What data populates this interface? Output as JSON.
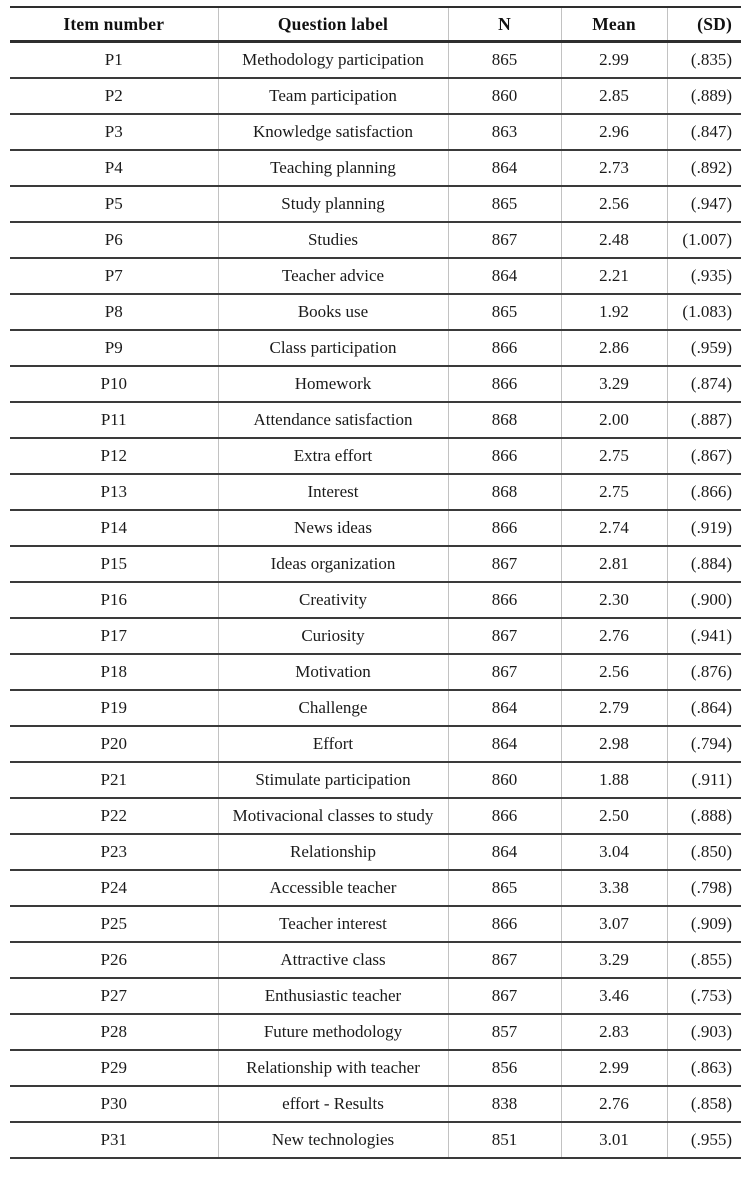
{
  "table": {
    "columns": {
      "item": "Item number",
      "label": "Question label",
      "n": "N",
      "mean": "Mean",
      "sd": "(SD)"
    },
    "rows": [
      {
        "item": "P1",
        "label": "Methodology participation",
        "n": "865",
        "mean": "2.99",
        "sd": "(.835)"
      },
      {
        "item": "P2",
        "label": "Team participation",
        "n": "860",
        "mean": "2.85",
        "sd": "(.889)"
      },
      {
        "item": "P3",
        "label": "Knowledge satisfaction",
        "n": "863",
        "mean": "2.96",
        "sd": "(.847)"
      },
      {
        "item": "P4",
        "label": "Teaching planning",
        "n": "864",
        "mean": "2.73",
        "sd": "(.892)"
      },
      {
        "item": "P5",
        "label": "Study planning",
        "n": "865",
        "mean": "2.56",
        "sd": "(.947)"
      },
      {
        "item": "P6",
        "label": "Studies",
        "n": "867",
        "mean": "2.48",
        "sd": "(1.007)"
      },
      {
        "item": "P7",
        "label": "Teacher advice",
        "n": "864",
        "mean": "2.21",
        "sd": "(.935)"
      },
      {
        "item": "P8",
        "label": "Books use",
        "n": "865",
        "mean": "1.92",
        "sd": "(1.083)"
      },
      {
        "item": "P9",
        "label": "Class participation",
        "n": "866",
        "mean": "2.86",
        "sd": "(.959)"
      },
      {
        "item": "P10",
        "label": "Homework",
        "n": "866",
        "mean": "3.29",
        "sd": "(.874)"
      },
      {
        "item": "P11",
        "label": "Attendance satisfaction",
        "n": "868",
        "mean": "2.00",
        "sd": "(.887)"
      },
      {
        "item": "P12",
        "label": "Extra effort",
        "n": "866",
        "mean": "2.75",
        "sd": "(.867)"
      },
      {
        "item": "P13",
        "label": "Interest",
        "n": "868",
        "mean": "2.75",
        "sd": "(.866)"
      },
      {
        "item": "P14",
        "label": "News ideas",
        "n": "866",
        "mean": "2.74",
        "sd": "(.919)"
      },
      {
        "item": "P15",
        "label": "Ideas organization",
        "n": "867",
        "mean": "2.81",
        "sd": "(.884)"
      },
      {
        "item": "P16",
        "label": "Creativity",
        "n": "866",
        "mean": "2.30",
        "sd": "(.900)"
      },
      {
        "item": "P17",
        "label": "Curiosity",
        "n": "867",
        "mean": "2.76",
        "sd": "(.941)"
      },
      {
        "item": "P18",
        "label": "Motivation",
        "n": "867",
        "mean": "2.56",
        "sd": "(.876)"
      },
      {
        "item": "P19",
        "label": "Challenge",
        "n": "864",
        "mean": "2.79",
        "sd": "(.864)"
      },
      {
        "item": "P20",
        "label": "Effort",
        "n": "864",
        "mean": "2.98",
        "sd": "(.794)"
      },
      {
        "item": "P21",
        "label": "Stimulate participation",
        "n": "860",
        "mean": "1.88",
        "sd": "(.911)"
      },
      {
        "item": "P22",
        "label": "Motivacional classes to study",
        "n": "866",
        "mean": "2.50",
        "sd": "(.888)"
      },
      {
        "item": "P23",
        "label": "Relationship",
        "n": "864",
        "mean": "3.04",
        "sd": "(.850)"
      },
      {
        "item": "P24",
        "label": "Accessible teacher",
        "n": "865",
        "mean": "3.38",
        "sd": "(.798)"
      },
      {
        "item": "P25",
        "label": "Teacher interest",
        "n": "866",
        "mean": "3.07",
        "sd": "(.909)"
      },
      {
        "item": "P26",
        "label": "Attractive class",
        "n": "867",
        "mean": "3.29",
        "sd": "(.855)"
      },
      {
        "item": "P27",
        "label": "Enthusiastic teacher",
        "n": "867",
        "mean": "3.46",
        "sd": "(.753)"
      },
      {
        "item": "P28",
        "label": "Future methodology",
        "n": "857",
        "mean": "2.83",
        "sd": "(.903)"
      },
      {
        "item": "P29",
        "label": "Relationship with teacher",
        "n": "856",
        "mean": "2.99",
        "sd": "(.863)"
      },
      {
        "item": "P30",
        "label": "effort - Results",
        "n": "838",
        "mean": "2.76",
        "sd": "(.858)"
      },
      {
        "item": "P31",
        "label": "New technologies",
        "n": "851",
        "mean": "3.01",
        "sd": "(.955)"
      }
    ]
  }
}
